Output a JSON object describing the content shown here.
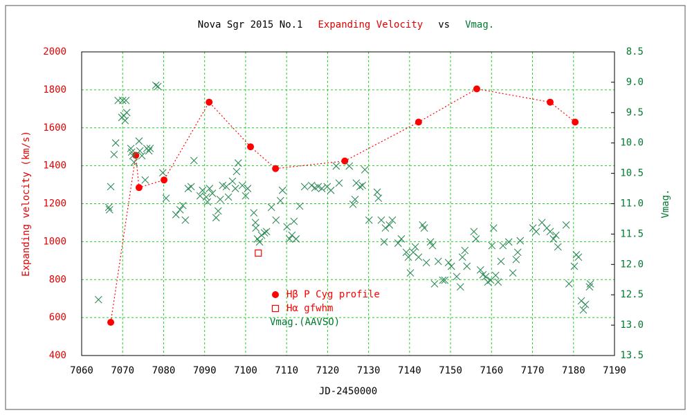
{
  "chart_data": {
    "type": "scatter",
    "title_parts": [
      {
        "text": "Nova Sgr 2015 No.1",
        "color": "#000000"
      },
      {
        "text": "Expanding Velocity",
        "color": "#e00000"
      },
      {
        "text": "vs",
        "color": "#000000"
      },
      {
        "text": "Vmag.",
        "color": "#007a2e"
      }
    ],
    "xlabel": "JD-2450000",
    "ylabel": "Expanding velocity (km/s)",
    "y2label": "Vmag.",
    "ylabel_color": "#e00000",
    "y2label_color": "#007a2e",
    "xlim": [
      7060,
      7190
    ],
    "xticks": [
      7060,
      7070,
      7080,
      7090,
      7100,
      7110,
      7120,
      7130,
      7140,
      7150,
      7160,
      7170,
      7180,
      7190
    ],
    "ylim": [
      400,
      2000
    ],
    "yticks": [
      400,
      600,
      800,
      1000,
      1200,
      1400,
      1600,
      1800,
      2000
    ],
    "y2lim": [
      8.5,
      13.5
    ],
    "y2_inverted": true,
    "y2ticks": [
      8.5,
      {
        "value": 9,
        "label": "9.0"
      },
      9.5,
      {
        "value": 10,
        "label": "10.0"
      },
      10.5,
      {
        "value": 11,
        "label": "11.0"
      },
      11.5,
      {
        "value": 12,
        "label": "12.0"
      },
      12.5,
      {
        "value": 13,
        "label": "13.0"
      },
      13.5
    ],
    "grid": true,
    "grid_color": "#22cc22",
    "series": [
      {
        "name": "Hβ P Cyg profile",
        "color": "#ff0000",
        "marker": "circle",
        "line": "dashed",
        "x": [
          7067.1,
          7073.2,
          7074.0,
          7080.1,
          7091.1,
          7101.2,
          7107.3,
          7124.2,
          7142.2,
          7156.4,
          7174.3,
          7180.4
        ],
        "values": [
          575,
          1455,
          1285,
          1325,
          1735,
          1500,
          1385,
          1425,
          1630,
          1805,
          1735,
          1630
        ]
      },
      {
        "name": "Hα gfwhm",
        "color": "#ff0000",
        "marker": "square",
        "x": [
          7103.1
        ],
        "values": [
          940
        ]
      },
      {
        "name": "Vmag.(AAVSO)",
        "color": "#2e8b57",
        "marker": "x",
        "axis": "y2",
        "x": [
          7064.1,
          7066.6,
          7066.8,
          7067.1,
          7067.9,
          7068.3,
          7068.9,
          7070.0,
          7069.8,
          7070.3,
          7070.8,
          7070.6,
          7071.0,
          7072.0,
          7072.2,
          7072.5,
          7072.8,
          7074.0,
          7074.2,
          7074.7,
          7075.5,
          7075.9,
          7076.4,
          7076.7,
          7078.1,
          7078.6,
          7079.8,
          7080.6,
          7083.0,
          7084.0,
          7084.7,
          7085.3,
          7086.0,
          7086.7,
          7087.4,
          7088.9,
          7089.5,
          7090.4,
          7090.7,
          7091.2,
          7091.9,
          7092.8,
          7093.3,
          7093.8,
          7094.4,
          7095.3,
          7095.8,
          7096.8,
          7097.5,
          7097.8,
          7098.2,
          7099.2,
          7100.0,
          7100.5,
          7102.0,
          7102.4,
          7102.5,
          7102.9,
          7103.4,
          7103.9,
          7104.6,
          7105.1,
          7106.3,
          7107.4,
          7108.5,
          7109.0,
          7110.1,
          7110.7,
          7111.3,
          7111.8,
          7112.3,
          7113.2,
          7114.4,
          7116.1,
          7116.9,
          7117.7,
          7118.6,
          7119.9,
          7120.8,
          7122.1,
          7122.8,
          7125.3,
          7126.2,
          7126.7,
          7127.0,
          7127.9,
          7128.5,
          7129.1,
          7130.1,
          7132.1,
          7132.4,
          7133.1,
          7133.8,
          7134.1,
          7135.1,
          7135.8,
          7137.2,
          7138.0,
          7139.2,
          7139.7,
          7140.2,
          7140.9,
          7141.4,
          7142.2,
          7143.2,
          7143.6,
          7144.1,
          7145.1,
          7145.6,
          7146.1,
          7147.0,
          7148.1,
          7148.6,
          7149.5,
          7150.2,
          7151.5,
          7152.4,
          7152.9,
          7153.5,
          7154.0,
          7155.7,
          7156.2,
          7157.3,
          7157.9,
          7158.6,
          7159.1,
          7159.8,
          7160.1,
          7160.5,
          7161.0,
          7161.6,
          7162.3,
          7162.8,
          7164.2,
          7165.2,
          7166.0,
          7166.4,
          7167.0,
          7170.1,
          7170.9,
          7172.3,
          7173.5,
          7174.3,
          7175.1,
          7175.7,
          7176.2,
          7178.2,
          7178.9,
          7180.2,
          7180.7,
          7181.2,
          7181.9,
          7182.4,
          7182.9,
          7183.9,
          7184.1
        ],
        "values": [
          12.58,
          11.06,
          11.1,
          10.72,
          10.19,
          10.0,
          9.3,
          9.3,
          9.58,
          9.55,
          9.3,
          9.63,
          9.5,
          10.09,
          10.15,
          10.21,
          10.32,
          9.97,
          10.13,
          10.21,
          10.61,
          10.09,
          10.13,
          10.09,
          9.05,
          9.07,
          10.49,
          10.91,
          11.18,
          11.1,
          11.03,
          11.27,
          10.75,
          10.72,
          10.29,
          10.87,
          10.78,
          10.89,
          10.97,
          10.75,
          10.83,
          11.23,
          11.12,
          10.93,
          10.7,
          10.72,
          10.89,
          10.63,
          10.75,
          10.47,
          10.33,
          10.7,
          10.87,
          10.75,
          11.15,
          11.31,
          11.4,
          11.58,
          11.63,
          11.52,
          11.48,
          11.46,
          11.06,
          11.27,
          10.95,
          10.78,
          11.38,
          11.58,
          11.52,
          11.29,
          11.58,
          11.04,
          10.72,
          10.7,
          10.74,
          10.72,
          10.75,
          10.72,
          10.78,
          10.38,
          10.66,
          10.38,
          11.01,
          10.93,
          10.66,
          10.72,
          10.7,
          10.44,
          11.27,
          10.81,
          10.91,
          11.27,
          11.63,
          11.4,
          11.35,
          11.27,
          11.65,
          11.58,
          11.8,
          11.88,
          12.14,
          11.8,
          11.71,
          11.88,
          11.35,
          11.4,
          11.97,
          11.63,
          11.69,
          12.32,
          11.95,
          12.26,
          12.26,
          11.97,
          12.03,
          12.2,
          12.37,
          11.88,
          11.77,
          12.03,
          11.46,
          11.58,
          12.09,
          12.17,
          12.2,
          12.29,
          12.26,
          11.69,
          11.4,
          12.18,
          12.29,
          11.95,
          11.69,
          11.63,
          12.14,
          11.92,
          11.8,
          11.61,
          11.4,
          11.46,
          11.31,
          11.4,
          11.46,
          11.58,
          11.52,
          11.71,
          11.35,
          12.32,
          12.03,
          11.84,
          11.88,
          12.6,
          12.75,
          12.66,
          12.37,
          12.32
        ]
      }
    ]
  }
}
